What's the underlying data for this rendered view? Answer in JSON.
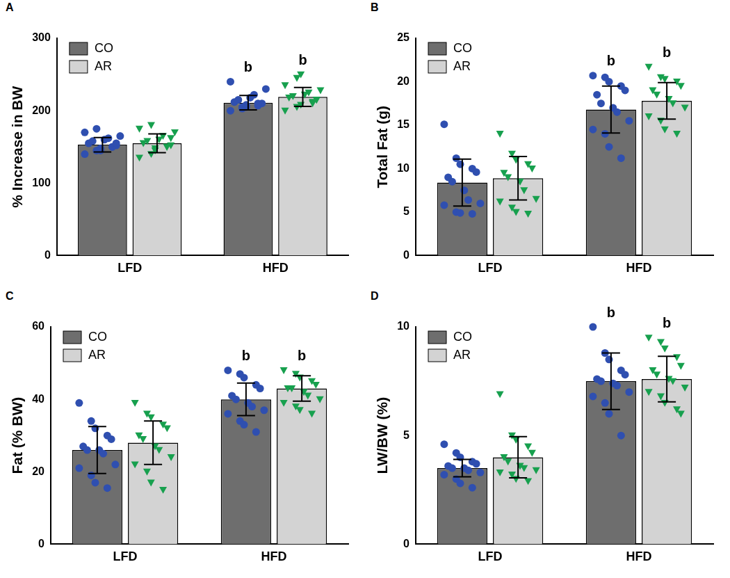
{
  "chart_data": [
    {
      "type": "bar",
      "title": "A",
      "y_label": "% Increase in BW",
      "categories": [
        "LFD",
        "HFD"
      ],
      "ylim": [
        0,
        300
      ],
      "yticks": [
        0,
        100,
        200,
        300
      ],
      "grid": false,
      "legend": "upper left",
      "series": [
        {
          "name": "CO",
          "color": "#6e6e6e",
          "marker": "circle",
          "values": [
            153,
            211
          ],
          "errors": [
            10,
            10
          ],
          "points": [
            [
              140,
              145,
              148,
              150,
              152,
              155,
              158,
              160,
              162,
              165,
              170,
              175,
              145,
              150,
              155
            ],
            [
              200,
              203,
              205,
              207,
              210,
              212,
              215,
              218,
              222,
              230,
              240,
              205,
              208,
              210
            ]
          ],
          "annotations": [
            null,
            "b"
          ]
        },
        {
          "name": "AR",
          "color": "#d3d3d3",
          "marker": "triangle",
          "values": [
            155,
            219
          ],
          "errors": [
            13,
            13
          ],
          "points": [
            [
              135,
              140,
              145,
              150,
              152,
              155,
              158,
              160,
              165,
              170,
              175,
              180,
              148,
              150,
              162
            ],
            [
              200,
              205,
              208,
              210,
              215,
              218,
              220,
              222,
              225,
              228,
              235,
              245,
              250,
              212,
              215
            ]
          ],
          "annotations": [
            null,
            "b"
          ]
        }
      ]
    },
    {
      "type": "bar",
      "title": "B",
      "y_label": "Total Fat (g)",
      "categories": [
        "LFD",
        "HFD"
      ],
      "ylim": [
        0,
        25
      ],
      "yticks": [
        0,
        5,
        10,
        15,
        20,
        25
      ],
      "grid": false,
      "legend": "upper left",
      "series": [
        {
          "name": "CO",
          "color": "#6e6e6e",
          "marker": "circle",
          "values": [
            8.4,
            16.8
          ],
          "errors": [
            2.7,
            2.7
          ],
          "points": [
            [
              15.1,
              11.2,
              10.5,
              10.0,
              9.6,
              9.0,
              8.5,
              7.5,
              6.4,
              6.0,
              5.8,
              5.0,
              4.9,
              4.8
            ],
            [
              20.7,
              20.5,
              20.0,
              19.5,
              19.0,
              18.5,
              17.5,
              17.0,
              16.5,
              15.5,
              14.5,
              14.0,
              12.5,
              11.2
            ]
          ],
          "annotations": [
            null,
            "b"
          ]
        },
        {
          "name": "AR",
          "color": "#d3d3d3",
          "marker": "triangle",
          "values": [
            8.9,
            17.8
          ],
          "errors": [
            2.5,
            2.1
          ],
          "points": [
            [
              14.0,
              11.7,
              11.0,
              10.5,
              10.0,
              9.5,
              9.0,
              8.5,
              7.5,
              6.5,
              6.2,
              5.5,
              5.0,
              4.8
            ],
            [
              21.7,
              20.5,
              20.3,
              20.0,
              19.5,
              19.0,
              18.5,
              18.0,
              17.5,
              17.0,
              16.0,
              15.5,
              14.5,
              14.0
            ]
          ],
          "annotations": [
            null,
            "b"
          ]
        }
      ]
    },
    {
      "type": "bar",
      "title": "C",
      "y_label": "Fat (% BW)",
      "categories": [
        "LFD",
        "HFD"
      ],
      "ylim": [
        0,
        60
      ],
      "yticks": [
        0,
        20,
        40,
        60
      ],
      "grid": false,
      "legend": "upper left",
      "series": [
        {
          "name": "CO",
          "color": "#6e6e6e",
          "marker": "circle",
          "values": [
            26,
            40
          ],
          "errors": [
            6.5,
            4.5
          ],
          "points": [
            [
              39,
              34,
              32,
              30,
              29,
              27,
              26,
              26,
              25,
              22,
              21,
              19,
              17,
              15.5
            ],
            [
              48,
              47,
              46,
              44,
              43,
              41,
              40,
              39,
              38,
              37,
              36,
              34,
              33,
              31
            ]
          ],
          "annotations": [
            null,
            "b"
          ]
        },
        {
          "name": "AR",
          "color": "#d3d3d3",
          "marker": "triangle",
          "values": [
            28,
            43
          ],
          "errors": [
            6,
            3.5
          ],
          "points": [
            [
              39,
              36,
              35,
              33,
              32,
              30,
              29,
              27,
              26,
              24,
              22,
              20,
              17,
              15
            ],
            [
              48,
              47,
              46,
              45,
              44,
              43,
              43,
              42,
              41,
              40,
              39,
              38,
              37,
              36
            ]
          ],
          "annotations": [
            null,
            "b"
          ]
        }
      ]
    },
    {
      "type": "bar",
      "title": "D",
      "y_label": "LW/BW (%)",
      "categories": [
        "LFD",
        "HFD"
      ],
      "ylim": [
        0,
        10
      ],
      "yticks": [
        0,
        5,
        10
      ],
      "grid": false,
      "legend": "upper left",
      "series": [
        {
          "name": "CO",
          "color": "#6e6e6e",
          "marker": "circle",
          "values": [
            3.5,
            7.5
          ],
          "errors": [
            0.4,
            1.3
          ],
          "points": [
            [
              4.6,
              4.2,
              4.0,
              3.8,
              3.7,
              3.6,
              3.5,
              3.5,
              3.4,
              3.3,
              3.2,
              3.0,
              2.8,
              2.6
            ],
            [
              10.0,
              8.8,
              8.5,
              8.0,
              7.8,
              7.6,
              7.5,
              7.4,
              7.3,
              7.0,
              6.8,
              6.5,
              6.0,
              5.0
            ]
          ],
          "annotations": [
            null,
            "b"
          ]
        },
        {
          "name": "AR",
          "color": "#d3d3d3",
          "marker": "triangle",
          "values": [
            4.0,
            7.6
          ],
          "errors": [
            0.95,
            1.05
          ],
          "points": [
            [
              6.9,
              5.0,
              4.8,
              4.5,
              4.2,
              4.0,
              3.8,
              3.6,
              3.5,
              3.4,
              3.3,
              3.2,
              3.0,
              2.9
            ],
            [
              9.5,
              9.3,
              9.0,
              8.6,
              8.2,
              8.0,
              7.8,
              7.6,
              7.5,
              7.2,
              7.0,
              6.8,
              6.5,
              6.2,
              6.0
            ]
          ],
          "annotations": [
            null,
            "b"
          ]
        }
      ]
    }
  ]
}
